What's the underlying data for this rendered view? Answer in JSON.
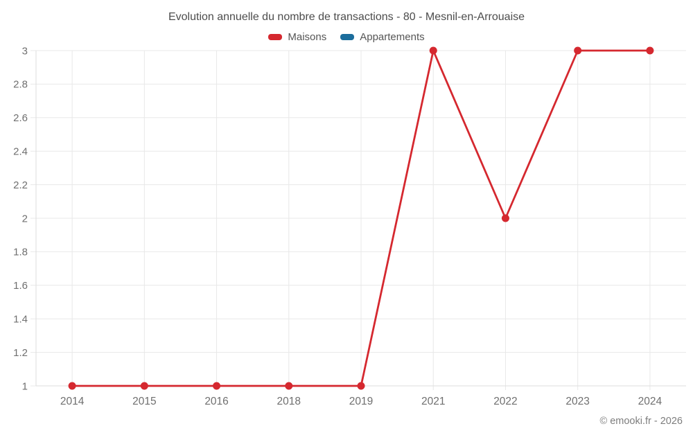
{
  "header": {
    "title": "Evolution annuelle du nombre de transactions - 80 - Mesnil-en-Arrouaise"
  },
  "legend": {
    "items": [
      {
        "label": "Maisons",
        "color": "#d5282f"
      },
      {
        "label": "Appartements",
        "color": "#1c6d9c"
      }
    ]
  },
  "chart_data": {
    "type": "line",
    "title": "Evolution annuelle du nombre de transactions - 80 - Mesnil-en-Arrouaise",
    "categories": [
      "2014",
      "2015",
      "2016",
      "2018",
      "2019",
      "2021",
      "2022",
      "2023",
      "2024"
    ],
    "series": [
      {
        "name": "Maisons",
        "color": "#d5282f",
        "values": [
          1,
          1,
          1,
          1,
          1,
          3,
          2,
          3,
          3
        ]
      },
      {
        "name": "Appartements",
        "color": "#1c6d9c",
        "values": []
      }
    ],
    "xlabel": "",
    "ylabel": "",
    "ylim": [
      1,
      3
    ],
    "yticks": [
      1,
      1.2,
      1.4,
      1.6,
      1.8,
      2,
      2.2,
      2.4,
      2.6,
      2.8,
      3
    ],
    "ytick_labels": [
      "1",
      "1.2",
      "1.4",
      "1.6",
      "1.8",
      "2",
      "2.2",
      "2.4",
      "2.6",
      "2.8",
      "3"
    ],
    "grid": true,
    "legend_position": "top",
    "colors": {
      "grid": "#e8e8e8",
      "axis": "#dedede",
      "tick_text": "#6f6f6f",
      "title_text": "#4c4c4c"
    }
  },
  "footer": {
    "copyright": "© emooki.fr - 2026"
  }
}
